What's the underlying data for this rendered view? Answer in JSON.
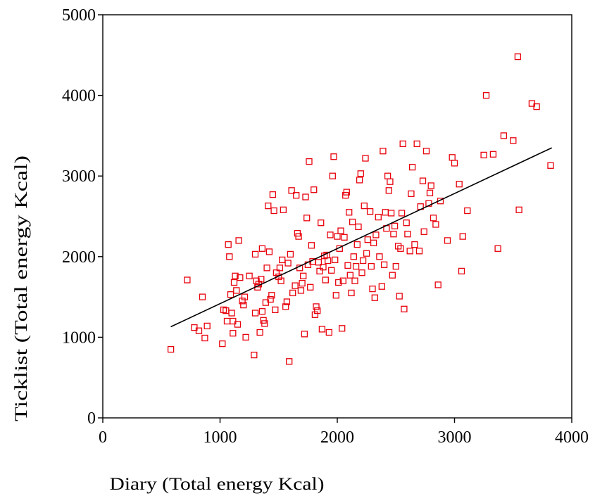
{
  "chart_data": {
    "type": "scatter",
    "title": "",
    "xlabel": "Diary (Total energy Kcal)",
    "ylabel": "Ticklist (Total energy Kcal)",
    "xlim": [
      0,
      4000
    ],
    "ylim": [
      0,
      5000
    ],
    "xticks": [
      0,
      1000,
      2000,
      3000,
      4000
    ],
    "yticks": [
      0,
      1000,
      2000,
      3000,
      4000,
      5000
    ],
    "grid": false,
    "legend": "none",
    "marker": "open-square",
    "marker_color": "#e8000b",
    "line_color": "#000000",
    "fit_line": {
      "x": [
        580,
        3830
      ],
      "y": [
        1130,
        3350
      ]
    },
    "points": [
      [
        580,
        850
      ],
      [
        720,
        1710
      ],
      [
        780,
        1120
      ],
      [
        820,
        1080
      ],
      [
        850,
        1500
      ],
      [
        870,
        990
      ],
      [
        890,
        1140
      ],
      [
        1020,
        920
      ],
      [
        1030,
        1340
      ],
      [
        1050,
        1330
      ],
      [
        1060,
        1200
      ],
      [
        1070,
        2150
      ],
      [
        1080,
        2000
      ],
      [
        1090,
        1530
      ],
      [
        1100,
        1300
      ],
      [
        1110,
        1050
      ],
      [
        1110,
        1200
      ],
      [
        1120,
        1680
      ],
      [
        1130,
        1760
      ],
      [
        1140,
        1580
      ],
      [
        1150,
        1160
      ],
      [
        1160,
        2200
      ],
      [
        1170,
        1740
      ],
      [
        1190,
        1450
      ],
      [
        1200,
        1400
      ],
      [
        1210,
        1500
      ],
      [
        1220,
        1000
      ],
      [
        1250,
        1760
      ],
      [
        1290,
        780
      ],
      [
        1300,
        1300
      ],
      [
        1300,
        2030
      ],
      [
        1310,
        1700
      ],
      [
        1320,
        1620
      ],
      [
        1330,
        1660
      ],
      [
        1340,
        1060
      ],
      [
        1350,
        1720
      ],
      [
        1360,
        2100
      ],
      [
        1360,
        1320
      ],
      [
        1370,
        1210
      ],
      [
        1380,
        1170
      ],
      [
        1390,
        1430
      ],
      [
        1400,
        1860
      ],
      [
        1410,
        2630
      ],
      [
        1420,
        2060
      ],
      [
        1430,
        1470
      ],
      [
        1440,
        1520
      ],
      [
        1450,
        2770
      ],
      [
        1460,
        2570
      ],
      [
        1470,
        1340
      ],
      [
        1480,
        1800
      ],
      [
        1500,
        1750
      ],
      [
        1510,
        1860
      ],
      [
        1520,
        1700
      ],
      [
        1530,
        1960
      ],
      [
        1540,
        2580
      ],
      [
        1560,
        1380
      ],
      [
        1570,
        1440
      ],
      [
        1580,
        1920
      ],
      [
        1590,
        700
      ],
      [
        1600,
        2030
      ],
      [
        1610,
        2820
      ],
      [
        1620,
        1550
      ],
      [
        1640,
        1640
      ],
      [
        1650,
        2760
      ],
      [
        1660,
        2290
      ],
      [
        1670,
        2250
      ],
      [
        1680,
        1860
      ],
      [
        1690,
        1580
      ],
      [
        1700,
        1670
      ],
      [
        1710,
        1760
      ],
      [
        1720,
        1040
      ],
      [
        1730,
        2740
      ],
      [
        1740,
        2480
      ],
      [
        1750,
        1900
      ],
      [
        1760,
        3180
      ],
      [
        1770,
        1620
      ],
      [
        1780,
        2140
      ],
      [
        1790,
        1940
      ],
      [
        1800,
        2830
      ],
      [
        1810,
        1280
      ],
      [
        1820,
        1380
      ],
      [
        1830,
        1330
      ],
      [
        1840,
        1930
      ],
      [
        1850,
        1820
      ],
      [
        1860,
        2420
      ],
      [
        1870,
        1100
      ],
      [
        1880,
        1870
      ],
      [
        1890,
        2010
      ],
      [
        1900,
        1710
      ],
      [
        1910,
        2020
      ],
      [
        1920,
        1950
      ],
      [
        1930,
        1060
      ],
      [
        1940,
        2270
      ],
      [
        1950,
        1830
      ],
      [
        1960,
        3000
      ],
      [
        1970,
        3240
      ],
      [
        1980,
        1960
      ],
      [
        1990,
        1520
      ],
      [
        2000,
        2250
      ],
      [
        2010,
        1680
      ],
      [
        2020,
        2100
      ],
      [
        2030,
        2320
      ],
      [
        2040,
        1110
      ],
      [
        2050,
        1700
      ],
      [
        2060,
        2240
      ],
      [
        2070,
        2760
      ],
      [
        2080,
        2800
      ],
      [
        2090,
        1890
      ],
      [
        2100,
        2550
      ],
      [
        2110,
        1770
      ],
      [
        2120,
        1550
      ],
      [
        2130,
        2430
      ],
      [
        2140,
        2000
      ],
      [
        2150,
        1700
      ],
      [
        2160,
        1880
      ],
      [
        2170,
        2150
      ],
      [
        2180,
        2370
      ],
      [
        2190,
        2950
      ],
      [
        2200,
        3030
      ],
      [
        2210,
        1800
      ],
      [
        2220,
        1950
      ],
      [
        2230,
        2630
      ],
      [
        2240,
        3220
      ],
      [
        2250,
        2040
      ],
      [
        2260,
        2210
      ],
      [
        2280,
        2560
      ],
      [
        2290,
        1880
      ],
      [
        2300,
        1600
      ],
      [
        2310,
        2170
      ],
      [
        2320,
        1490
      ],
      [
        2330,
        2270
      ],
      [
        2350,
        2490
      ],
      [
        2360,
        2000
      ],
      [
        2380,
        1630
      ],
      [
        2390,
        3310
      ],
      [
        2400,
        1900
      ],
      [
        2410,
        2550
      ],
      [
        2420,
        2350
      ],
      [
        2430,
        3000
      ],
      [
        2440,
        2820
      ],
      [
        2450,
        2930
      ],
      [
        2460,
        2540
      ],
      [
        2470,
        1770
      ],
      [
        2480,
        2280
      ],
      [
        2490,
        2380
      ],
      [
        2500,
        1880
      ],
      [
        2520,
        2130
      ],
      [
        2530,
        1510
      ],
      [
        2540,
        2100
      ],
      [
        2550,
        2540
      ],
      [
        2560,
        3400
      ],
      [
        2570,
        1350
      ],
      [
        2590,
        2420
      ],
      [
        2600,
        2280
      ],
      [
        2620,
        2070
      ],
      [
        2630,
        2780
      ],
      [
        2640,
        3110
      ],
      [
        2660,
        2150
      ],
      [
        2680,
        3400
      ],
      [
        2700,
        2070
      ],
      [
        2710,
        2620
      ],
      [
        2730,
        2940
      ],
      [
        2740,
        2310
      ],
      [
        2760,
        3310
      ],
      [
        2780,
        2660
      ],
      [
        2790,
        2790
      ],
      [
        2800,
        2880
      ],
      [
        2820,
        2480
      ],
      [
        2840,
        2400
      ],
      [
        2860,
        1650
      ],
      [
        2880,
        2690
      ],
      [
        2940,
        2200
      ],
      [
        2980,
        3230
      ],
      [
        3000,
        3160
      ],
      [
        3040,
        2900
      ],
      [
        3060,
        1820
      ],
      [
        3070,
        2250
      ],
      [
        3110,
        2570
      ],
      [
        3250,
        3260
      ],
      [
        3270,
        4000
      ],
      [
        3330,
        3270
      ],
      [
        3370,
        2100
      ],
      [
        3420,
        3500
      ],
      [
        3500,
        3440
      ],
      [
        3540,
        4480
      ],
      [
        3550,
        2580
      ],
      [
        3660,
        3900
      ],
      [
        3700,
        3860
      ],
      [
        3820,
        3130
      ]
    ]
  }
}
